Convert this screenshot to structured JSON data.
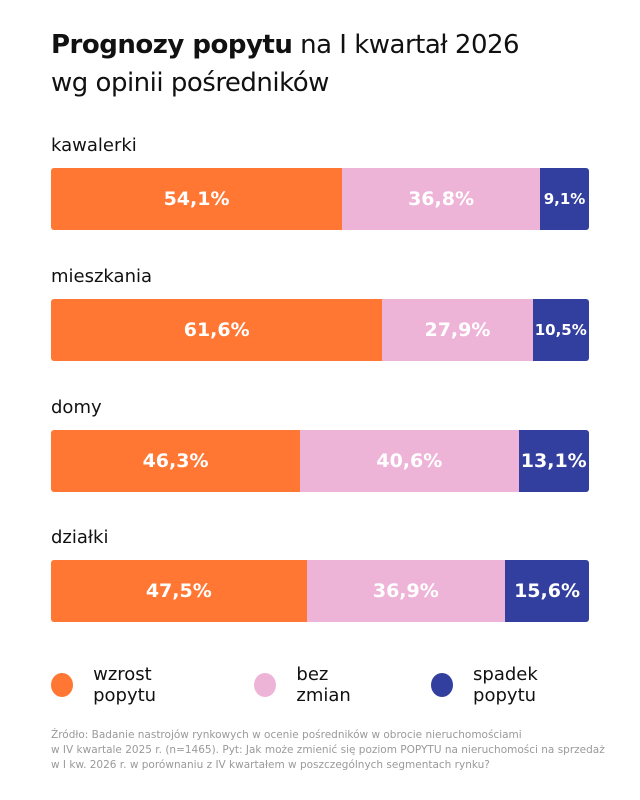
{
  "chart_data": {
    "type": "bar",
    "orientation": "horizontal",
    "stacked": true,
    "title_bold": "Prognozy popytu",
    "title_rest": "na I kwartał 2026",
    "subtitle": "wg opinii pośredników",
    "categories": [
      "kawalerki",
      "mieszkania",
      "domy",
      "działki"
    ],
    "series": [
      {
        "name": "wzrost popytu",
        "color": "#FF7733",
        "values": [
          54.1,
          61.6,
          46.3,
          47.5
        ],
        "labels": [
          "54,1%",
          "61,6%",
          "46,3%",
          "47,5%"
        ]
      },
      {
        "name": "bez zmian",
        "color": "#EEB4D8",
        "values": [
          36.8,
          27.9,
          40.6,
          36.9
        ],
        "labels": [
          "36,8%",
          "27,9%",
          "40,6%",
          "36,9%"
        ]
      },
      {
        "name": "spadek popytu",
        "color": "#333F9E",
        "values": [
          9.1,
          10.5,
          13.1,
          15.6
        ],
        "labels": [
          "9,1%",
          "10,5%",
          "13,1%",
          "15,6%"
        ]
      }
    ],
    "legend": "bottom"
  },
  "footer": [
    "Źródło: Badanie nastrojów rynkowych w ocenie pośredników w obrocie nieruchomościami",
    "w IV kwartale 2025 r. (n=1465). Pyt: Jak może zmienić się poziom POPYTU na nieruchomości na sprzedaż",
    "w I kw. 2026 r. w porównaniu z IV kwartałem w poszczególnych segmentach rynku?"
  ]
}
